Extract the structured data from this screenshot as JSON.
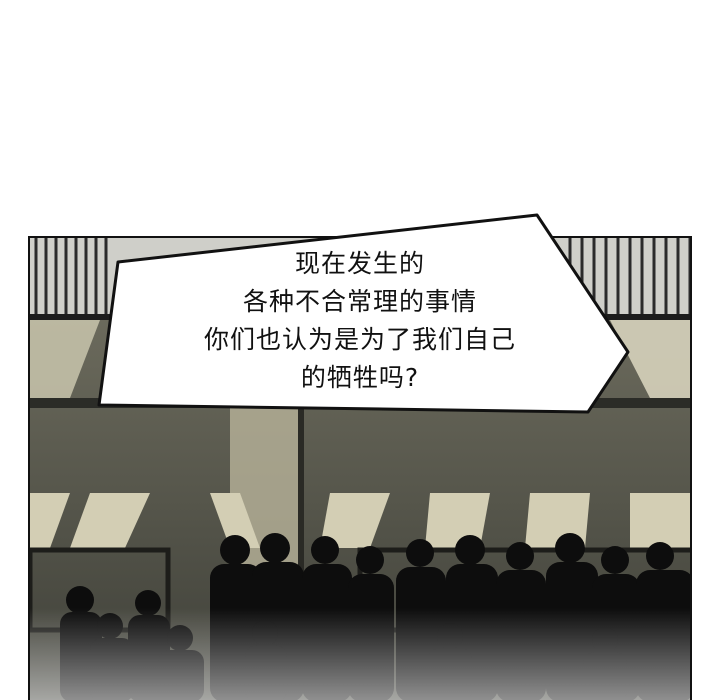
{
  "speech_bubble": {
    "lines": [
      "现在发生的",
      "各种不合常理的事情",
      "你们也认为是为了我们自己",
      "的牺牲吗?"
    ]
  }
}
